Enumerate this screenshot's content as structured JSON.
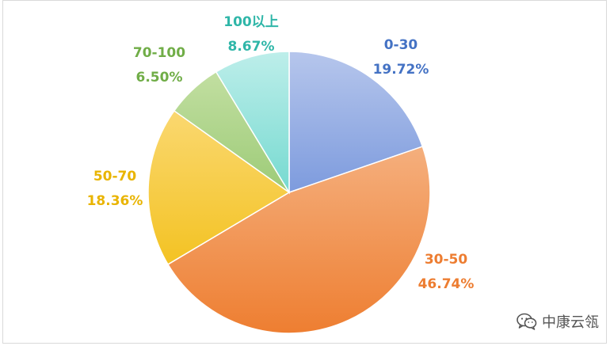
{
  "chart_data": {
    "type": "pie",
    "title": "",
    "categories": [
      "0-30",
      "30-50",
      "50-70",
      "70-100",
      "100以上"
    ],
    "values": [
      19.72,
      46.74,
      18.36,
      6.5,
      8.67
    ],
    "value_labels": [
      "19.72%",
      "46.74%",
      "18.36%",
      "6.50%",
      "8.67%"
    ],
    "start_angle_deg": 0,
    "direction": "clockwise",
    "colors": [
      {
        "light": "#b6c6ec",
        "dark": "#4470cf",
        "label": "#4472c4"
      },
      {
        "light": "#f8c8a4",
        "dark": "#ee7e31",
        "label": "#ed7d31"
      },
      {
        "light": "#fde08e",
        "dark": "#f0b900",
        "label": "#e9b400"
      },
      {
        "light": "#c8e2a8",
        "dark": "#72b447",
        "label": "#70ad47"
      },
      {
        "light": "#bdeeea",
        "dark": "#2ec5b6",
        "label": "#2fb6a8"
      }
    ],
    "legend": "none"
  },
  "watermark": {
    "text": "中康云瓴",
    "icon": "wechat-icon"
  }
}
